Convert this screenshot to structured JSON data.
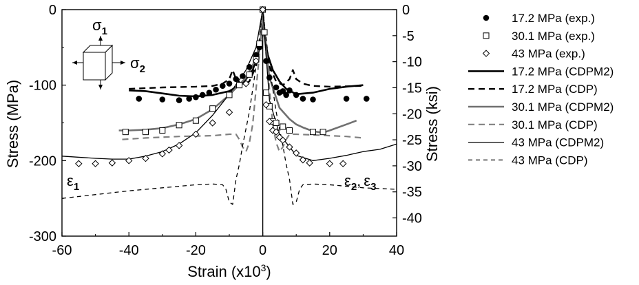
{
  "chart_data": {
    "type": "line",
    "title": "",
    "xlabel": "Strain (x10",
    "xlabel_sup": "3",
    "xlabel_end": ")",
    "ylabel": "Stress (MPa)",
    "ylabel_right": "Stress (ksi)",
    "xlim": [
      -60,
      40
    ],
    "ylim": [
      -300,
      0
    ],
    "ylim_right": [
      -43.5,
      0
    ],
    "x_ticks": [
      -60,
      -40,
      -20,
      0,
      20,
      40
    ],
    "y_ticks": [
      -300,
      -200,
      -100,
      0
    ],
    "y_ticks_right": [
      0,
      -5,
      -10,
      -15,
      -20,
      -25,
      -30,
      -35,
      -40
    ],
    "x_tick_labels": [
      "-60",
      "-40",
      "-20",
      "0",
      "20",
      "40"
    ],
    "y_tick_labels": [
      "-300",
      "-200",
      "-100",
      "0"
    ],
    "y_tick_labels_right": [
      "0",
      "-5",
      "-10",
      "-15",
      "-20",
      "-25",
      "-30",
      "-35",
      "-40"
    ],
    "annotations": {
      "sigma1": "σ1",
      "sigma2": "σ2",
      "eps1": "ε1",
      "eps23": "ε2, ε3",
      "sigma": "σ",
      "one": "1",
      "two": "2",
      "epsilon": "ε",
      "three": "3",
      "comma": ","
    },
    "series": [
      {
        "name": "17.2 MPa (exp.)",
        "marker": "filled-circle",
        "line": "none",
        "color": "#000000",
        "x": [
          -37,
          -30,
          -25,
          -22,
          -20,
          -18,
          -16,
          -14,
          -12,
          -10,
          -8,
          -6,
          -4,
          -2,
          -1,
          0,
          1,
          2,
          4,
          5,
          6,
          7,
          8,
          10,
          12,
          15,
          25,
          31
        ],
        "y": [
          -118,
          -119,
          -120,
          -118,
          -116,
          -113,
          -110,
          -106,
          -101,
          -98,
          -92,
          -88,
          -76,
          -60,
          -50,
          0,
          -68,
          -90,
          -103,
          -110,
          -108,
          -113,
          -107,
          -113,
          -118,
          -119,
          -118,
          -118
        ]
      },
      {
        "name": "30.1 MPa (exp.)",
        "marker": "open-square",
        "line": "none",
        "color": "#000000",
        "x": [
          -41,
          -35,
          -30,
          -25,
          -20,
          -15,
          -10,
          -7,
          -4,
          -2,
          -1,
          0,
          0.5,
          1,
          2,
          3,
          4,
          6,
          8,
          15,
          18
        ],
        "y": [
          -162,
          -162,
          -160,
          -153,
          -147,
          -131,
          -113,
          -100,
          -86,
          -66,
          -45,
          0,
          -30,
          -110,
          -128,
          -148,
          -150,
          -155,
          -160,
          -162,
          -162
        ]
      },
      {
        "name": "43 MPa (exp.)",
        "marker": "open-diamond",
        "line": "none",
        "color": "#000000",
        "x": [
          -55,
          -50,
          -45,
          -40,
          -35,
          -30,
          -28,
          -25,
          -20,
          -15,
          -10,
          -5,
          -2,
          0,
          1,
          2,
          3,
          4,
          5,
          6,
          8,
          10,
          12,
          14,
          20,
          24
        ],
        "y": [
          -204,
          -204,
          -203,
          -200,
          -197,
          -191,
          -186,
          -180,
          -165,
          -150,
          -136,
          -98,
          -68,
          0,
          -126,
          -148,
          -160,
          -162,
          -169,
          -173,
          -182,
          -190,
          -199,
          -203,
          -204,
          -204
        ]
      },
      {
        "name": "17.2 MPa (CDPM2)",
        "line": "solid",
        "color": "#000000",
        "width": 2.6,
        "x": [
          -40,
          -35,
          -30,
          -25,
          -20,
          -15,
          -10,
          -7,
          -5,
          -3,
          -1.5,
          -0.5,
          0,
          0.5,
          1.5,
          3,
          5,
          7,
          10,
          15,
          20,
          25,
          30
        ],
        "y": [
          -107,
          -108,
          -111,
          -114,
          -115,
          -113,
          -108,
          -100,
          -92,
          -80,
          -60,
          -35,
          0,
          -35,
          -60,
          -80,
          -95,
          -105,
          -112,
          -110,
          -105,
          -102,
          -100
        ]
      },
      {
        "name": "17.2 MPa (CDP)",
        "line": "dashed",
        "color": "#000000",
        "width": 2.4,
        "x": [
          -40,
          -30,
          -20,
          -15,
          -12,
          -10,
          -9,
          -8,
          -6,
          -4,
          -2,
          -1,
          0,
          1,
          2,
          4,
          6,
          8,
          9,
          10,
          12,
          15,
          20,
          30
        ],
        "y": [
          -105,
          -103,
          -102,
          -101,
          -98,
          -92,
          -80,
          -92,
          -100,
          -95,
          -75,
          -50,
          0,
          -50,
          -75,
          -95,
          -100,
          -92,
          -80,
          -92,
          -98,
          -101,
          -102,
          -101
        ]
      },
      {
        "name": "30.1 MPa (CDPM2)",
        "line": "solid",
        "color": "#707070",
        "width": 2.6,
        "x": [
          -43,
          -40,
          -35,
          -30,
          -25,
          -20,
          -15,
          -10,
          -5,
          -2,
          -0.5,
          0,
          0.5,
          2,
          5,
          8,
          10,
          12,
          15,
          18,
          20,
          25,
          28
        ],
        "y": [
          -160,
          -160,
          -159,
          -157,
          -152,
          -145,
          -132,
          -113,
          -90,
          -65,
          -35,
          0,
          -35,
          -90,
          -130,
          -145,
          -152,
          -156,
          -161,
          -163,
          -160,
          -152,
          -147
        ]
      },
      {
        "name": "30.1 MPa (CDP)",
        "line": "dashed",
        "color": "#808080",
        "width": 2.2,
        "x": [
          -42,
          -35,
          -25,
          -15,
          -10,
          -8,
          -7,
          -6,
          -5,
          -4,
          -3,
          -2,
          -1,
          0,
          1,
          2,
          3,
          4,
          5,
          6,
          7,
          8,
          10,
          15,
          25,
          30
        ],
        "y": [
          -172,
          -170,
          -168,
          -167,
          -165,
          -165,
          -172,
          -182,
          -188,
          -176,
          -152,
          -105,
          -60,
          0,
          -60,
          -105,
          -152,
          -176,
          -188,
          -182,
          -172,
          -165,
          -165,
          -166,
          -168,
          -170
        ]
      },
      {
        "name": "43 MPa (CDPM2)",
        "line": "solid",
        "color": "#000000",
        "width": 1.3,
        "x": [
          -60,
          -50,
          -45,
          -40,
          -35,
          -30,
          -25,
          -20,
          -15,
          -10,
          -5,
          -2,
          0,
          2,
          5,
          10,
          15,
          20,
          25,
          30,
          35,
          40
        ],
        "y": [
          -194,
          -197,
          -198,
          -198,
          -194,
          -188,
          -178,
          -163,
          -140,
          -112,
          -80,
          -50,
          0,
          -120,
          -165,
          -193,
          -200,
          -197,
          -193,
          -188,
          -185,
          -178
        ]
      },
      {
        "name": "43 MPa (CDP)",
        "line": "dashed",
        "color": "#000000",
        "width": 1.3,
        "x": [
          -60,
          -50,
          -40,
          -30,
          -20,
          -15,
          -12,
          -11,
          -10,
          -9,
          -8,
          -7,
          -6,
          -4,
          -2,
          0,
          2,
          4,
          6,
          7,
          8,
          9,
          10,
          11,
          12,
          15,
          20,
          30,
          40
        ],
        "y": [
          -250,
          -245,
          -240,
          -236,
          -232,
          -231,
          -232,
          -238,
          -255,
          -258,
          -225,
          -205,
          -180,
          -135,
          -75,
          0,
          -75,
          -135,
          -180,
          -205,
          -225,
          -258,
          -255,
          -238,
          -232,
          -231,
          -232,
          -236,
          -238
        ]
      }
    ]
  }
}
